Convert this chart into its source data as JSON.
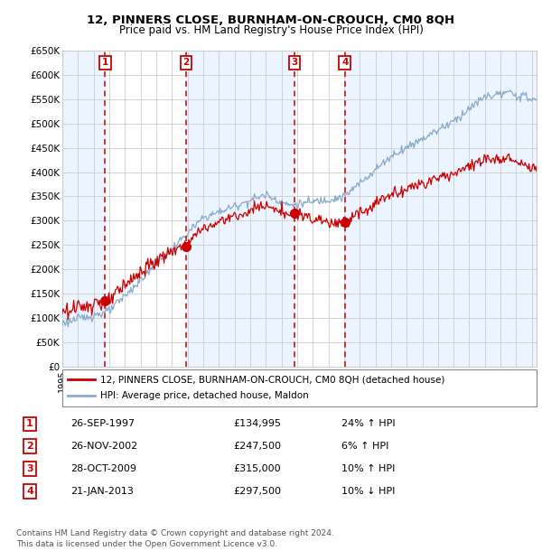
{
  "title": "12, PINNERS CLOSE, BURNHAM-ON-CROUCH, CM0 8QH",
  "subtitle": "Price paid vs. HM Land Registry's House Price Index (HPI)",
  "ylim": [
    0,
    650000
  ],
  "yticks": [
    0,
    50000,
    100000,
    150000,
    200000,
    250000,
    300000,
    350000,
    400000,
    450000,
    500000,
    550000,
    600000,
    650000
  ],
  "ytick_labels": [
    "£0",
    "£50K",
    "£100K",
    "£150K",
    "£200K",
    "£250K",
    "£300K",
    "£350K",
    "£400K",
    "£450K",
    "£500K",
    "£550K",
    "£600K",
    "£650K"
  ],
  "sale_dates_num": [
    1997.73,
    2002.9,
    2009.82,
    2013.05
  ],
  "sale_prices": [
    134995,
    247500,
    315000,
    297500
  ],
  "sale_labels": [
    "1",
    "2",
    "3",
    "4"
  ],
  "sale_date_strs": [
    "26-SEP-1997",
    "26-NOV-2002",
    "28-OCT-2009",
    "21-JAN-2013"
  ],
  "sale_price_strs": [
    "£134,995",
    "£247,500",
    "£315,000",
    "£297,500"
  ],
  "sale_pct_strs": [
    "24% ↑ HPI",
    "6% ↑ HPI",
    "10% ↑ HPI",
    "10% ↓ HPI"
  ],
  "legend_line1": "12, PINNERS CLOSE, BURNHAM-ON-CROUCH, CM0 8QH (detached house)",
  "legend_line2": "HPI: Average price, detached house, Maldon",
  "footer1": "Contains HM Land Registry data © Crown copyright and database right 2024.",
  "footer2": "This data is licensed under the Open Government Licence v3.0.",
  "red_line_color": "#cc0000",
  "blue_line_color": "#88aacc",
  "bg_shade_color": "#ddeeff",
  "grid_color": "#cccccc",
  "marker_fill": "#cc0000",
  "dashed_line_color": "#cc0000",
  "box_color": "#cc0000",
  "xlim_start": 1995,
  "xlim_end": 2025.3
}
